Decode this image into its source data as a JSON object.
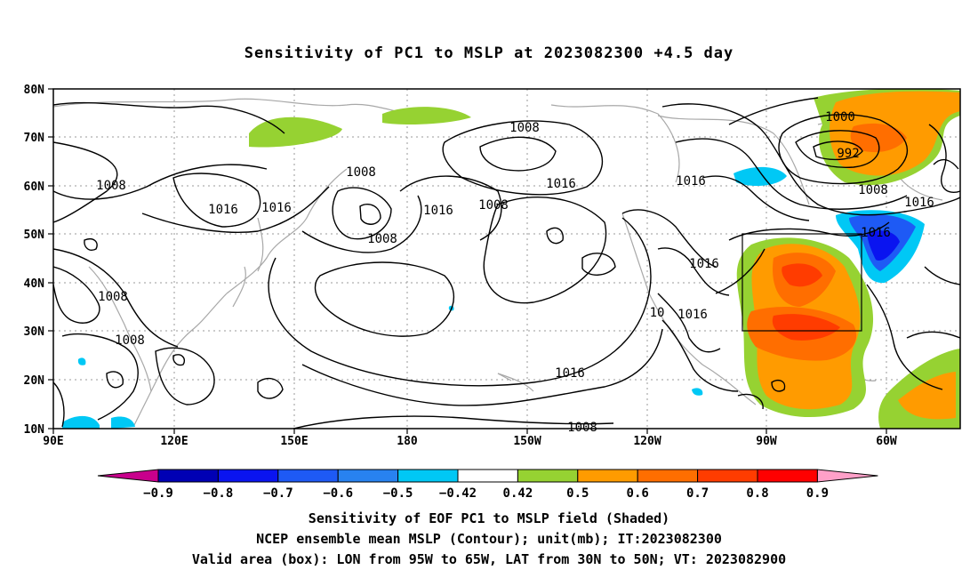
{
  "title": "Sensitivity of PC1 to MSLP at 2023082300 +4.5 day",
  "lat_labels": [
    "80N",
    "70N",
    "60N",
    "50N",
    "40N",
    "30N",
    "20N",
    "10N"
  ],
  "lon_labels": [
    "90E",
    "120E",
    "150E",
    "180",
    "150W",
    "120W",
    "90W",
    "60W"
  ],
  "contour_labels": [
    {
      "text": "1008"
    },
    {
      "text": "1016"
    },
    {
      "text": "1016"
    },
    {
      "text": "1008"
    },
    {
      "text": "1008"
    },
    {
      "text": "1016"
    },
    {
      "text": "1008"
    },
    {
      "text": "1008"
    },
    {
      "text": "1016"
    },
    {
      "text": "1016"
    },
    {
      "text": "1016"
    },
    {
      "text": "1000"
    },
    {
      "text": "992"
    },
    {
      "text": "1008"
    },
    {
      "text": "1016"
    },
    {
      "text": "1016"
    },
    {
      "text": "1016"
    },
    {
      "text": "1016"
    },
    {
      "text": "10"
    },
    {
      "text": "1008"
    },
    {
      "text": "1008"
    },
    {
      "text": "1008"
    }
  ],
  "colorbar": {
    "labels": [
      "-0.9",
      "-0.8",
      "-0.7",
      "-0.6",
      "-0.5",
      "-0.42",
      "0.42",
      "0.5",
      "0.6",
      "0.7",
      "0.8",
      "0.9"
    ],
    "colors": [
      "#c8008c",
      "#0000b4",
      "#0a14f0",
      "#1e5af5",
      "#2882f0",
      "#00c8f5",
      "#ffffff",
      "#96d232",
      "#ff9b00",
      "#ff6e00",
      "#ff3c00",
      "#ff0000",
      "#ffa0c8"
    ]
  },
  "captions": [
    "Sensitivity of EOF PC1 to MSLP field (Shaded)",
    "NCEP ensemble mean MSLP (Contour); unit(mb); IT:2023082300",
    "Valid area (box): LON from 95W to 65W, LAT from 30N to 50N; VT: 2023082900"
  ]
}
